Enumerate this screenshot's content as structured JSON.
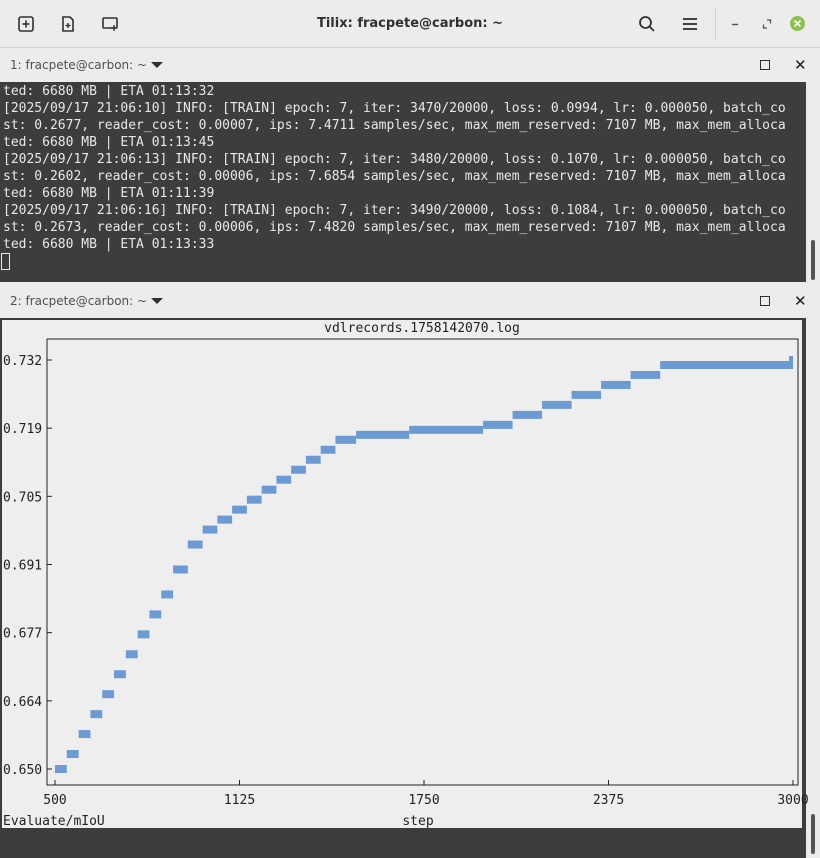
{
  "window": {
    "title": "Tilix: fracpete@carbon: ~",
    "icons": [
      "add-terminal-icon",
      "add-right-icon",
      "add-down-icon",
      "search-icon",
      "menu-icon",
      "minimize-icon",
      "restore-icon",
      "close-icon"
    ]
  },
  "panes": [
    {
      "title": "1: fracpete@carbon: ~"
    },
    {
      "title": "2: fracpete@carbon: ~"
    }
  ],
  "terminal": {
    "lines": [
      "ted: 6680 MB | ETA 01:13:32",
      "[2025/09/17 21:06:10] INFO: [TRAIN] epoch: 7, iter: 3470/20000, loss: 0.0994, lr: 0.000050, batch_co",
      "st: 0.2677, reader_cost: 0.00007, ips: 7.4711 samples/sec, max_mem_reserved: 7107 MB, max_mem_alloca",
      "ted: 6680 MB | ETA 01:13:45",
      "[2025/09/17 21:06:13] INFO: [TRAIN] epoch: 7, iter: 3480/20000, loss: 0.1070, lr: 0.000050, batch_co",
      "st: 0.2602, reader_cost: 0.00006, ips: 7.6854 samples/sec, max_mem_reserved: 7107 MB, max_mem_alloca",
      "ted: 6680 MB | ETA 01:11:39",
      "[2025/09/17 21:06:16] INFO: [TRAIN] epoch: 7, iter: 3490/20000, loss: 0.1084, lr: 0.000050, batch_co",
      "st: 0.2673, reader_cost: 0.00006, ips: 7.4820 samples/sec, max_mem_reserved: 7107 MB, max_mem_alloca",
      "ted: 6680 MB | ETA 01:13:33"
    ]
  },
  "chart_data": {
    "type": "line",
    "title": "vdlrecords.1758142070.log",
    "ylabel": "Evaluate/mIoU",
    "xlabel": "step",
    "xticks": [
      "500",
      "1125",
      "1750",
      "2375",
      "3000"
    ],
    "yticks": [
      "0.732",
      "0.719",
      "0.705",
      "0.691",
      "0.677",
      "0.664",
      "0.650"
    ],
    "xlim": [
      500,
      3000
    ],
    "ylim": [
      0.65,
      0.732
    ],
    "color": "#6b9bd2",
    "x": [
      500,
      540,
      580,
      620,
      660,
      700,
      740,
      780,
      820,
      860,
      900,
      950,
      1000,
      1050,
      1100,
      1150,
      1200,
      1250,
      1300,
      1350,
      1400,
      1450,
      1520,
      1700,
      1950,
      2050,
      2150,
      2250,
      2350,
      2450,
      2550,
      3000
    ],
    "y": [
      0.65,
      0.653,
      0.657,
      0.661,
      0.665,
      0.669,
      0.673,
      0.677,
      0.681,
      0.685,
      0.69,
      0.695,
      0.698,
      0.7,
      0.702,
      0.704,
      0.706,
      0.708,
      0.71,
      0.712,
      0.714,
      0.716,
      0.717,
      0.718,
      0.719,
      0.721,
      0.723,
      0.725,
      0.727,
      0.729,
      0.731,
      0.732
    ]
  }
}
